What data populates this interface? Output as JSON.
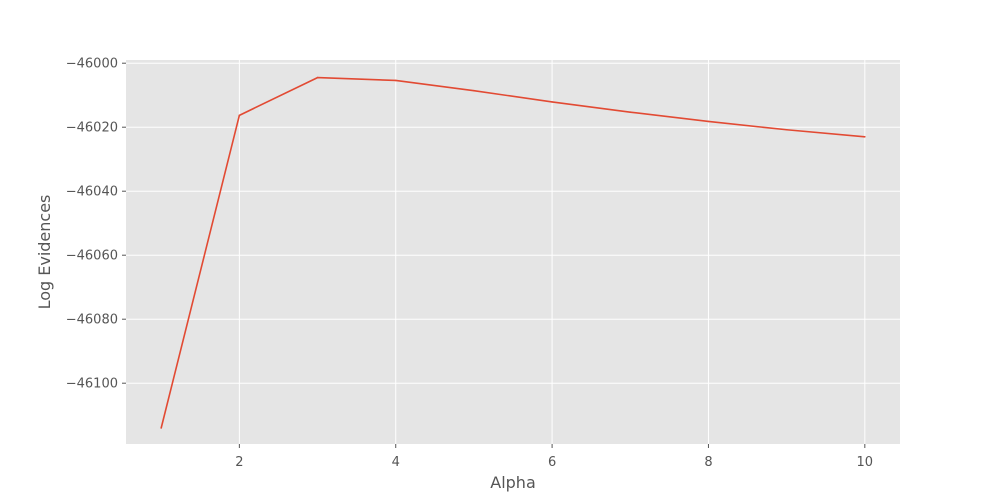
{
  "chart_data": {
    "type": "line",
    "title": "",
    "xlabel": "Alpha",
    "ylabel": "Log Evidences",
    "xlim": [
      0.55,
      10.45
    ],
    "ylim": [
      -46119,
      -45999
    ],
    "xticks": [
      2,
      4,
      6,
      8,
      10
    ],
    "xtick_labels": [
      "2",
      "4",
      "6",
      "8",
      "10"
    ],
    "yticks": [
      -46100,
      -46080,
      -46060,
      -46040,
      -46020,
      -46000
    ],
    "ytick_labels": [
      "−46100",
      "−46080",
      "−46060",
      "−46040",
      "−46020",
      "−46000"
    ],
    "grid": true,
    "legend": "none",
    "series": [
      {
        "x": [
          1,
          2,
          3,
          4,
          5,
          6,
          7,
          8,
          9,
          10
        ],
        "y": [
          -46114,
          -46016.3,
          -46004.5,
          -46005.4,
          -46008.6,
          -46012.1,
          -46015.3,
          -46018.2,
          -46020.8,
          -46023
        ]
      }
    ],
    "colors": {
      "plot_background": "#e5e5e5",
      "grid": "#ffffff",
      "line": "#e24a33",
      "text": "#555555"
    }
  }
}
